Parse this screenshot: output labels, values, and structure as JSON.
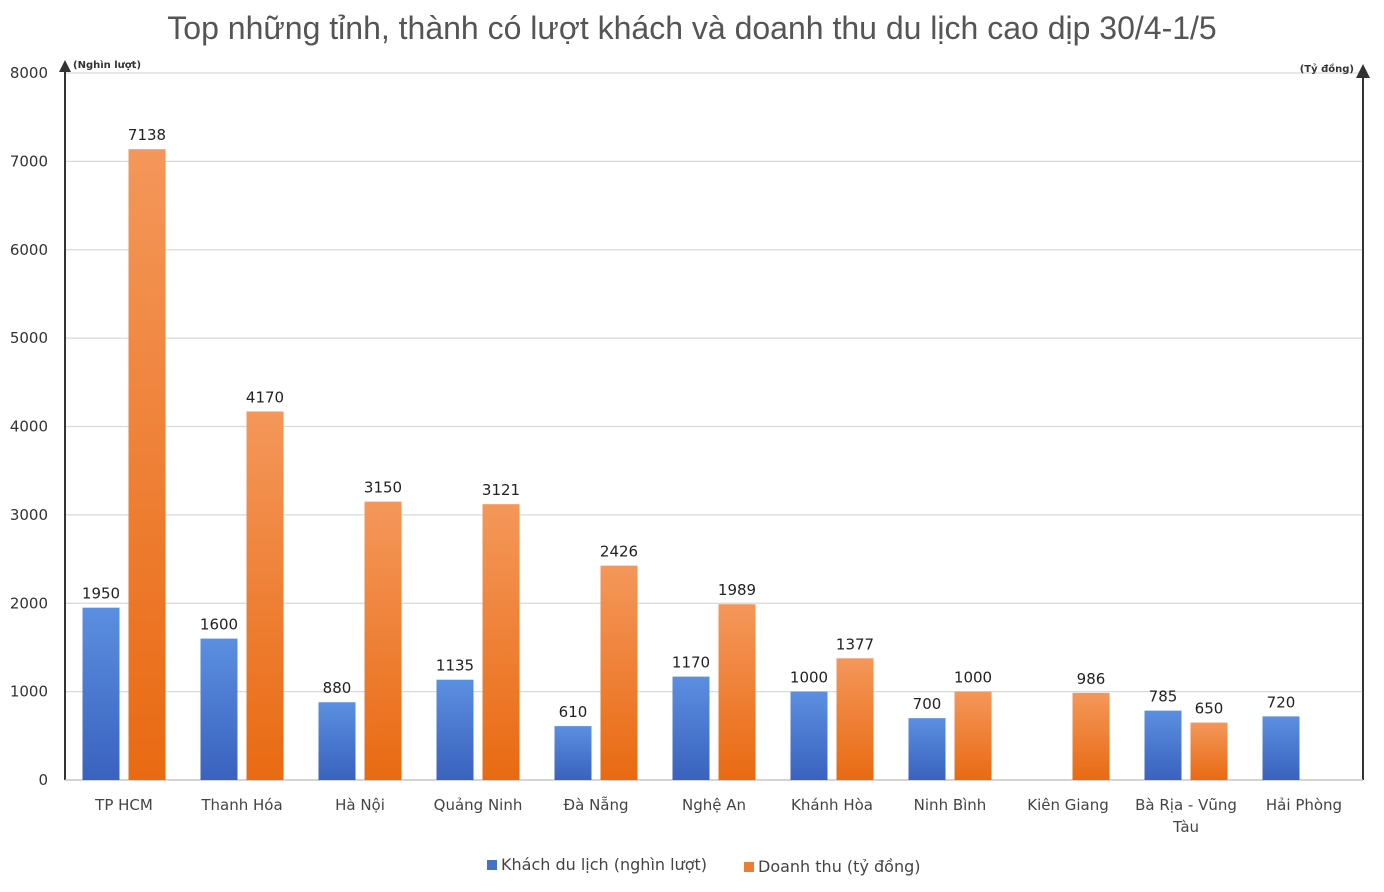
{
  "chart_data": {
    "type": "bar",
    "title": "Top những tỉnh, thành có lượt khách và doanh thu du lịch cao dịp 30/4-1/5",
    "y_unit_left": "(Nghìn lượt)",
    "y_unit_right": "(Tỷ đồng)",
    "ylim": [
      0,
      8000
    ],
    "yticks": [
      0,
      1000,
      2000,
      3000,
      4000,
      5000,
      6000,
      7000,
      8000
    ],
    "grid": true,
    "legend_position": "bottom",
    "categories": [
      "TP HCM",
      "Thanh Hóa",
      "Hà Nội",
      "Quảng Ninh",
      "Đà Nẵng",
      "Nghệ An",
      "Khánh Hòa",
      "Ninh Bình",
      "Kiên Giang",
      "Bà Rịa - Vũng Tàu",
      "Hải Phòng"
    ],
    "series": [
      {
        "name": "Khách du lịch (nghìn lượt)",
        "color": "#4472C4",
        "values": [
          1950,
          1600,
          880,
          1135,
          610,
          1170,
          1000,
          700,
          null,
          785,
          720
        ]
      },
      {
        "name": "Doanh thu (tỷ đồng)",
        "color": "#ED7D31",
        "values": [
          7138,
          4170,
          3150,
          3121,
          2426,
          1989,
          1377,
          1000,
          986,
          650,
          null
        ]
      }
    ]
  }
}
